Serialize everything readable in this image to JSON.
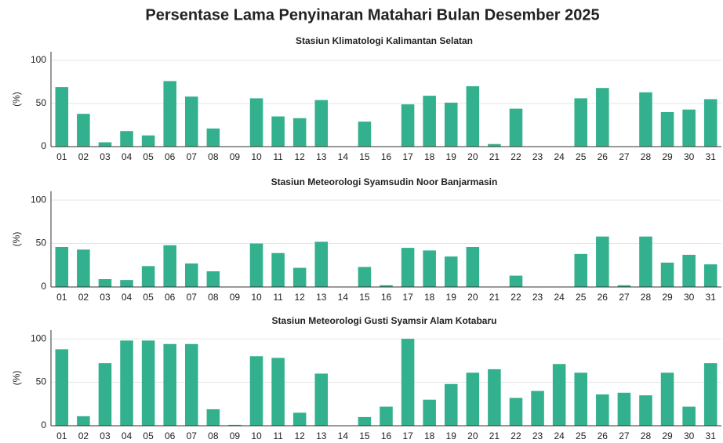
{
  "title": "Persentase Lama Penyinaran Matahari Bulan Desember 2025",
  "chart_data": [
    {
      "type": "bar",
      "title": "Stasiun Klimatologi Kalimantan Selatan",
      "ylabel": "(%)",
      "categories": [
        "01",
        "02",
        "03",
        "04",
        "05",
        "06",
        "07",
        "08",
        "09",
        "10",
        "11",
        "12",
        "13",
        "14",
        "15",
        "16",
        "17",
        "18",
        "19",
        "20",
        "21",
        "22",
        "23",
        "24",
        "25",
        "26",
        "27",
        "28",
        "29",
        "30",
        "31"
      ],
      "values": [
        69,
        38,
        5,
        18,
        13,
        76,
        58,
        21,
        0,
        56,
        35,
        33,
        54,
        0,
        29,
        0,
        49,
        59,
        51,
        70,
        3,
        44,
        0,
        0,
        56,
        68,
        0,
        63,
        40,
        43,
        55
      ],
      "color": "#33b08e",
      "ylim": [
        0,
        110
      ],
      "yticks": [
        0,
        50,
        100
      ],
      "grid": true
    },
    {
      "type": "bar",
      "title": "Stasiun Meteorologi Syamsudin Noor Banjarmasin",
      "ylabel": "(%)",
      "categories": [
        "01",
        "02",
        "03",
        "04",
        "05",
        "06",
        "07",
        "08",
        "09",
        "10",
        "11",
        "12",
        "13",
        "14",
        "15",
        "16",
        "17",
        "18",
        "19",
        "20",
        "21",
        "22",
        "23",
        "24",
        "25",
        "26",
        "27",
        "28",
        "29",
        "30",
        "31"
      ],
      "values": [
        46,
        43,
        9,
        8,
        24,
        48,
        27,
        18,
        0,
        50,
        39,
        22,
        52,
        0,
        23,
        2,
        45,
        42,
        35,
        46,
        0,
        13,
        0,
        0,
        38,
        58,
        2,
        58,
        28,
        37,
        26
      ],
      "color": "#33b08e",
      "ylim": [
        0,
        110
      ],
      "yticks": [
        0,
        50,
        100
      ],
      "grid": true
    },
    {
      "type": "bar",
      "title": "Stasiun Meteorologi Gusti Syamsir Alam Kotabaru",
      "ylabel": "(%)",
      "categories": [
        "01",
        "02",
        "03",
        "04",
        "05",
        "06",
        "07",
        "08",
        "09",
        "10",
        "11",
        "12",
        "13",
        "14",
        "15",
        "16",
        "17",
        "18",
        "19",
        "20",
        "21",
        "22",
        "23",
        "24",
        "25",
        "26",
        "27",
        "28",
        "29",
        "30",
        "31"
      ],
      "values": [
        88,
        11,
        72,
        98,
        98,
        94,
        94,
        19,
        1,
        80,
        78,
        15,
        60,
        0,
        10,
        22,
        100,
        30,
        48,
        61,
        65,
        32,
        40,
        71,
        61,
        36,
        38,
        35,
        61,
        22,
        72
      ],
      "color": "#33b08e",
      "ylim": [
        0,
        110
      ],
      "yticks": [
        0,
        50,
        100
      ],
      "grid": true
    }
  ]
}
